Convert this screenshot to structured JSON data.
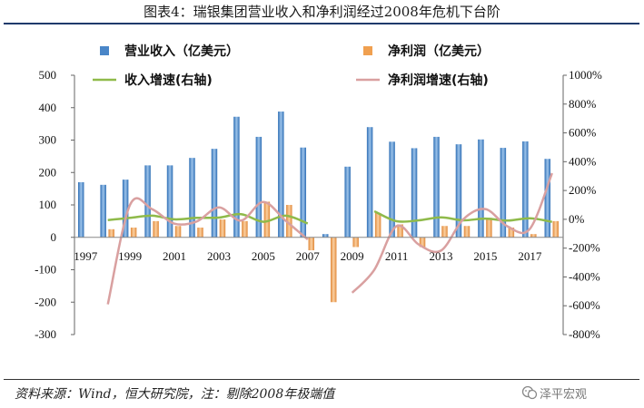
{
  "header": {
    "title": "图表4：瑞银集团营业收入和净利润经过2008年危机下台阶"
  },
  "footer": {
    "source": "资料来源：Wind，恒大研究院，注：剔除2008年极端值",
    "brand": "泽平宏观"
  },
  "colors": {
    "revenue": "#4a86c8",
    "profit": "#f0a050",
    "revenue_growth": "#8fba4a",
    "profit_growth": "#d9a0a0"
  },
  "chart_data": {
    "type": "bar",
    "x": [
      1997,
      1998,
      1999,
      2000,
      2001,
      2002,
      2003,
      2004,
      2005,
      2006,
      2007,
      2008,
      2009,
      2010,
      2011,
      2012,
      2013,
      2014,
      2015,
      2016,
      2017,
      2018
    ],
    "x_tick_labels": [
      "1997",
      "1999",
      "2001",
      "2003",
      "2005",
      "2007",
      "2009",
      "2011",
      "2013",
      "2015",
      "2017"
    ],
    "y_left": {
      "lim": [
        -300,
        500
      ],
      "ticks": [
        "-300",
        "-200",
        "-100",
        "0",
        "100",
        "200",
        "300",
        "400",
        "500"
      ]
    },
    "y_right": {
      "lim": [
        -800,
        1000
      ],
      "ticks": [
        "-800%",
        "-600%",
        "-400%",
        "-200%",
        "0%",
        "200%",
        "400%",
        "600%",
        "800%",
        "1000%"
      ]
    },
    "legend": {
      "placement": "top"
    },
    "series": [
      {
        "name": "营业收入（亿美元）",
        "type": "bar",
        "axis": "left",
        "values": [
          170,
          162,
          178,
          222,
          222,
          245,
          273,
          372,
          310,
          388,
          277,
          10,
          218,
          340,
          295,
          275,
          310,
          287,
          302,
          276,
          296,
          242
        ]
      },
      {
        "name": "净利润（亿美元）",
        "type": "bar",
        "axis": "left",
        "values": [
          0,
          25,
          30,
          50,
          35,
          30,
          55,
          50,
          110,
          100,
          -40,
          -200,
          -30,
          75,
          40,
          -30,
          35,
          35,
          60,
          30,
          10,
          50
        ]
      },
      {
        "name": "收入增速(右轴)",
        "type": "line",
        "axis": "right",
        "values": [
          null,
          -5,
          10,
          25,
          0,
          10,
          12,
          36,
          -17,
          25,
          -29,
          null,
          null,
          56,
          -13,
          -7,
          13,
          -7,
          5,
          -9,
          7,
          -18
        ]
      },
      {
        "name": "净利润增速(右轴)",
        "type": "line",
        "axis": "right",
        "values": [
          null,
          -590,
          100,
          70,
          -30,
          -15,
          83,
          -9,
          120,
          -9,
          -140,
          null,
          -510,
          -350,
          -47,
          -175,
          -217,
          0,
          71,
          -50,
          -67,
          320
        ]
      }
    ]
  }
}
